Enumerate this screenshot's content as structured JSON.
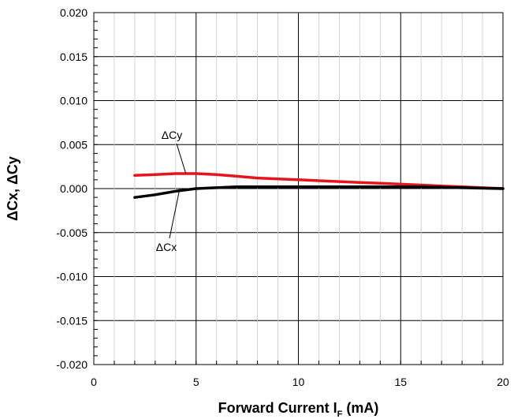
{
  "chart_data": {
    "type": "line",
    "title": "",
    "xlabel": "Forward Current I",
    "xlabel_subscript": "F",
    "xlabel_suffix": " (mA)",
    "ylabel": "ΔCx, ΔCy",
    "xlim": [
      0,
      20
    ],
    "ylim": [
      -0.02,
      0.02
    ],
    "xticks": [
      0,
      5,
      10,
      15,
      20
    ],
    "xtick_labels": [
      "0",
      "5",
      "10",
      "15",
      "20"
    ],
    "yticks": [
      0.02,
      0.015,
      0.01,
      0.005,
      0.0,
      -0.005,
      -0.01,
      -0.015,
      -0.02
    ],
    "ytick_labels": [
      "0.020",
      "0.015",
      "0.010",
      "0.005",
      "0.000",
      "-0.005",
      "-0.010",
      "-0.015",
      "-0.020"
    ],
    "grid": true,
    "series": [
      {
        "name": "ΔCy",
        "color": "#e8141b",
        "x": [
          2,
          3,
          4,
          5,
          6,
          7,
          8,
          9,
          10,
          11,
          12,
          13,
          14,
          15,
          16,
          17,
          18,
          19,
          20
        ],
        "y": [
          0.0015,
          0.0016,
          0.0017,
          0.0017,
          0.0016,
          0.0014,
          0.0012,
          0.0011,
          0.001,
          0.0009,
          0.0008,
          0.0007,
          0.0006,
          0.0005,
          0.0004,
          0.0003,
          0.0002,
          0.0001,
          0.0
        ]
      },
      {
        "name": "ΔCx",
        "color": "#000000",
        "x": [
          2,
          3,
          4,
          5,
          6,
          7,
          8,
          10,
          12,
          14,
          16,
          18,
          20
        ],
        "y": [
          -0.001,
          -0.0007,
          -0.0003,
          0.0,
          0.0001,
          0.0002,
          0.0002,
          0.0002,
          0.0002,
          0.0002,
          0.0002,
          0.0001,
          0.0
        ]
      }
    ],
    "annotations": [
      {
        "text": "ΔCy",
        "points_to": "ΔCy",
        "x": 4.5,
        "y": 0.0017
      },
      {
        "text": "ΔCx",
        "points_to": "ΔCx",
        "x": 4.2,
        "y": 0.0
      }
    ]
  }
}
